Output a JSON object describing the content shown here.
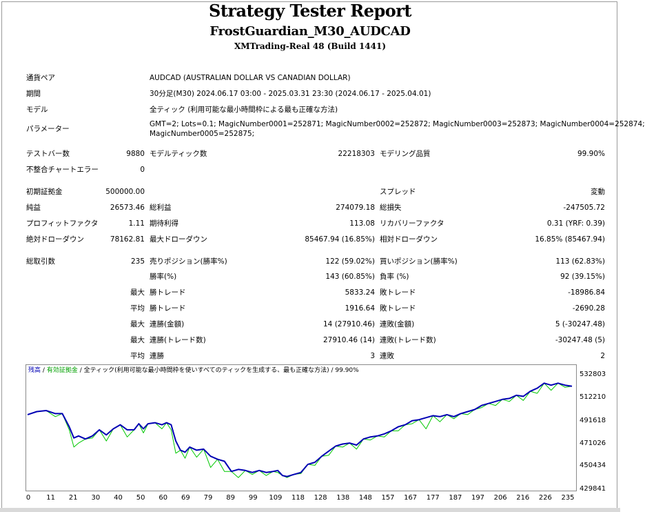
{
  "header": {
    "title": "Strategy Tester Report",
    "subtitle": "FrostGuardian_M30_AUDCAD",
    "server": "XMTrading-Real 48 (Build 1441)"
  },
  "info": {
    "pair_label": "通貨ペア",
    "pair_value": "AUDCAD (AUSTRALIAN DOLLAR VS CANADIAN DOLLAR)",
    "period_label": "期間",
    "period_value": "30分足(M30) 2024.06.17 03:00 - 2025.03.31 23:30 (2024.06.17 - 2025.04.01)",
    "model_label": "モデル",
    "model_value": "全ティック (利用可能な最小時間枠による最も正確な方法)",
    "params_label": "パラメーター",
    "params_line1": "GMT=2; Lots=0.1; MagicNumber0001=252871; MagicNumber0002=252872; MagicNumber0003=252873; MagicNumber0004=252874;",
    "params_line2": "MagicNumber0005=252875;"
  },
  "stats": {
    "bars_label": "テストバー数",
    "bars_value": "9880",
    "ticks_label": "モデルティック数",
    "ticks_value": "22218303",
    "quality_label": "モデリング品質",
    "quality_value": "99.90%",
    "mismatch_label": "不整合チャートエラー",
    "mismatch_value": "0",
    "deposit_label": "初期証拠金",
    "deposit_value": "500000.00",
    "spread_label": "スプレッド",
    "spread_value": "変動",
    "net_label": "純益",
    "net_value": "26573.46",
    "gross_profit_label": "総利益",
    "gross_profit_value": "274079.18",
    "gross_loss_label": "総損失",
    "gross_loss_value": "-247505.72",
    "pf_label": "プロフィットファクタ",
    "pf_value": "1.11",
    "expected_label": "期待利得",
    "expected_value": "113.08",
    "recovery_label": "リカバリーファクタ",
    "recovery_value": "0.31 (YRF: 0.39)",
    "abs_dd_label": "絶対ドローダウン",
    "abs_dd_value": "78162.81",
    "max_dd_label": "最大ドローダウン",
    "max_dd_value": "85467.94 (16.85%)",
    "rel_dd_label": "相対ドローダウン",
    "rel_dd_value": "16.85% (85467.94)",
    "trades_label": "総取引数",
    "trades_value": "235",
    "short_label": "売りポジション(勝率%)",
    "short_value": "122 (59.02%)",
    "long_label": "買いポジション(勝率%)",
    "long_value": "113 (62.83%)",
    "win_pct_label": "勝率(%)",
    "win_pct_value": "143 (60.85%)",
    "loss_pct_label": "負率 (%)",
    "loss_pct_value": "92 (39.15%)",
    "max_label": "最大",
    "avg_label": "平均",
    "win_trade_label": "勝トレード",
    "loss_trade_label": "敗トレード",
    "max_win_value": "5833.24",
    "max_loss_value": "-18986.84",
    "avg_win_value": "1916.64",
    "avg_loss_value": "-2690.28",
    "cons_win_money_label": "連勝(金額)",
    "cons_win_money_value": "14 (27910.46)",
    "cons_loss_money_label": "連敗(金額)",
    "cons_loss_money_value": "5 (-30247.48)",
    "cons_win_count_label": "連勝(トレード数)",
    "cons_win_count_value": "27910.46 (14)",
    "cons_loss_count_label": "連敗(トレード数)",
    "cons_loss_count_value": "-30247.48 (5)",
    "avg_cons_win_label": "連勝",
    "avg_cons_win_value": "3",
    "avg_cons_loss_label": "連敗",
    "avg_cons_loss_value": "2"
  },
  "chart_data": {
    "type": "line",
    "legend": {
      "balance": "残高",
      "equity": "有効証拠金",
      "model_text": "全ティック(利用可能な最小時間枠を使いすべてのティックを生成する、最も正確な方法)",
      "quality": "99.90%",
      "sep": "/"
    },
    "colors": {
      "balance": "#0000b4",
      "equity": "#00c800"
    },
    "y_ticks": [
      "532803",
      "512210",
      "491618",
      "471026",
      "450434",
      "429841"
    ],
    "x_ticks": [
      "0",
      "11",
      "21",
      "30",
      "40",
      "50",
      "60",
      "69",
      "79",
      "89",
      "99",
      "109",
      "118",
      "128",
      "138",
      "148",
      "157",
      "167",
      "177",
      "187",
      "197",
      "206",
      "216",
      "226",
      "235"
    ],
    "xlim": [
      0,
      235
    ],
    "ylim": [
      429841,
      540000
    ],
    "series": [
      {
        "key": "balance",
        "x": [
          0,
          4,
          8,
          12,
          15,
          18,
          20,
          22,
          25,
          28,
          31,
          34,
          37,
          40,
          43,
          46,
          48,
          50,
          52,
          55,
          58,
          60,
          62,
          64,
          66,
          68,
          70,
          73,
          76,
          79,
          82,
          85,
          88,
          91,
          94,
          97,
          100,
          103,
          106,
          108,
          110,
          112,
          115,
          118,
          121,
          124,
          127,
          130,
          133,
          136,
          139,
          142,
          145,
          148,
          151,
          154,
          157,
          160,
          163,
          166,
          169,
          172,
          175,
          178,
          181,
          184,
          187,
          190,
          193,
          196,
          199,
          202,
          205,
          208,
          211,
          214,
          217,
          220,
          223,
          226,
          229,
          232,
          235
        ],
        "y": [
          502000,
          505000,
          506000,
          503000,
          503000,
          490000,
          479000,
          481000,
          478000,
          481000,
          487000,
          482000,
          488000,
          492000,
          487000,
          487000,
          493000,
          488000,
          493000,
          494000,
          492000,
          494000,
          492000,
          476000,
          467000,
          465000,
          470000,
          467000,
          468000,
          461000,
          458000,
          456000,
          446000,
          448000,
          447000,
          445000,
          447000,
          445000,
          446000,
          447000,
          442000,
          441000,
          443000,
          445000,
          453000,
          455000,
          461000,
          466000,
          471000,
          473000,
          474000,
          472000,
          478000,
          480000,
          481000,
          483000,
          486000,
          490000,
          492000,
          496000,
          497000,
          499000,
          501000,
          500000,
          502000,
          500000,
          503000,
          505000,
          507000,
          511000,
          513000,
          515000,
          517000,
          518000,
          521000,
          520000,
          525000,
          528000,
          533000,
          531000,
          533000,
          531000,
          530000
        ]
      },
      {
        "key": "equity",
        "x": [
          0,
          4,
          8,
          12,
          15,
          18,
          20,
          22,
          25,
          28,
          31,
          34,
          37,
          40,
          43,
          46,
          48,
          50,
          52,
          55,
          58,
          60,
          62,
          64,
          66,
          68,
          70,
          73,
          76,
          79,
          82,
          85,
          88,
          91,
          94,
          97,
          100,
          103,
          106,
          108,
          110,
          112,
          115,
          118,
          121,
          124,
          127,
          130,
          133,
          136,
          139,
          142,
          145,
          148,
          151,
          154,
          157,
          160,
          163,
          166,
          169,
          172,
          175,
          178,
          181,
          184,
          187,
          190,
          193,
          196,
          199,
          202,
          205,
          208,
          211,
          214,
          217,
          220,
          223,
          226,
          229,
          232,
          235
        ],
        "y": [
          502000,
          505000,
          506000,
          500000,
          503000,
          487000,
          470000,
          474000,
          478000,
          479000,
          487000,
          476000,
          488000,
          492000,
          480000,
          487000,
          493000,
          484000,
          493000,
          494000,
          488000,
          494000,
          487000,
          464000,
          467000,
          459000,
          470000,
          460000,
          468000,
          450000,
          458000,
          446000,
          446000,
          440000,
          447000,
          443000,
          447000,
          442000,
          446000,
          445000,
          442000,
          440000,
          443000,
          444000,
          453000,
          452000,
          461000,
          462000,
          471000,
          470000,
          474000,
          468000,
          478000,
          477000,
          481000,
          480000,
          486000,
          486000,
          492000,
          493000,
          497000,
          488000,
          501000,
          495000,
          502000,
          498000,
          503000,
          502000,
          507000,
          509000,
          513000,
          511000,
          517000,
          515000,
          521000,
          516000,
          525000,
          523000,
          533000,
          526000,
          533000,
          529000,
          530000
        ]
      }
    ]
  }
}
